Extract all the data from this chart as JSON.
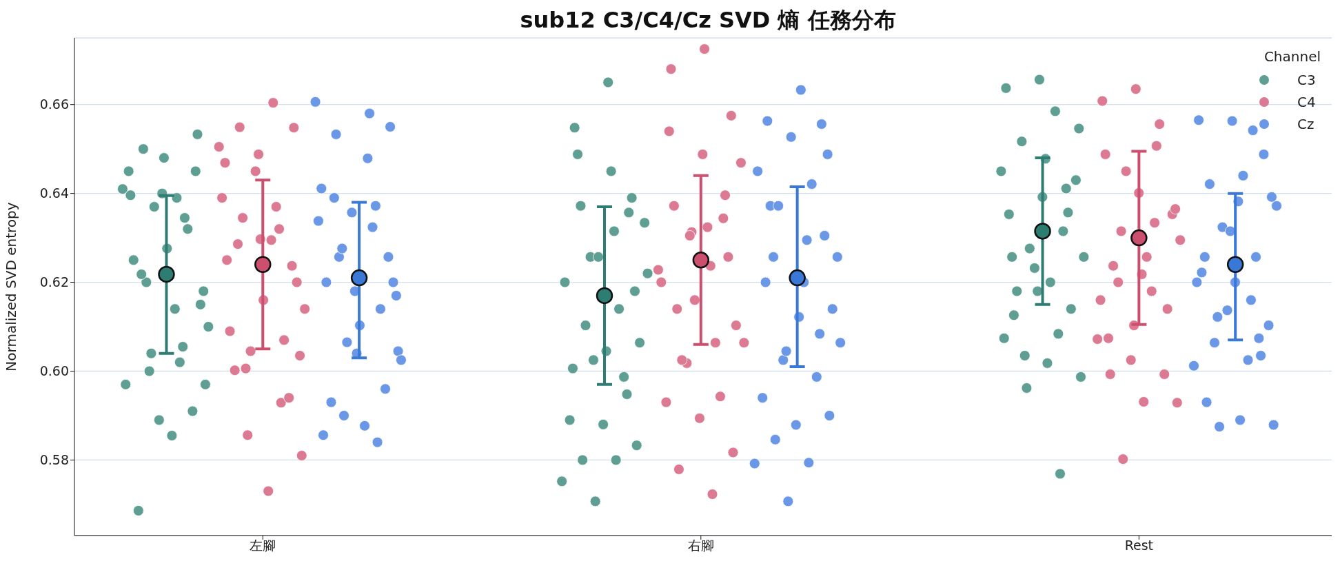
{
  "chart_data": {
    "type": "scatter",
    "title": "sub12 C3/C4/Cz SVD 熵 任務分布",
    "ylabel": "Normalized SVD entropy",
    "legend_title": "Channel",
    "legend": "top right",
    "grid": "y",
    "marker": "circle",
    "categories": [
      "左腳",
      "右腳",
      "Rest"
    ],
    "ylim": [
      0.563,
      0.675
    ],
    "yticks": [
      {
        "value": 0.58,
        "label": "0.58"
      },
      {
        "value": 0.6,
        "label": "0.60"
      },
      {
        "value": 0.62,
        "label": "0.62"
      },
      {
        "value": 0.64,
        "label": "0.64"
      },
      {
        "value": 0.66,
        "label": "0.66"
      }
    ],
    "series": [
      {
        "name": "C3",
        "color": "#5f9e93",
        "x": [
          "左腳",
          "左腳",
          "左腳",
          "左腳",
          "左腳",
          "左腳",
          "左腳",
          "左腳",
          "左腳",
          "左腳",
          "左腳",
          "左腳",
          "左腳",
          "左腳",
          "左腳",
          "左腳",
          "左腳",
          "左腳",
          "左腳",
          "左腳",
          "左腳",
          "左腳",
          "左腳",
          "左腳",
          "左腳",
          "左腳",
          "左腳",
          "左腳",
          "左腳",
          "左腳",
          "右腳",
          "右腳",
          "右腳",
          "右腳",
          "右腳",
          "右腳",
          "右腳",
          "右腳",
          "右腳",
          "右腳",
          "右腳",
          "右腳",
          "右腳",
          "右腳",
          "右腳",
          "右腳",
          "右腳",
          "右腳",
          "右腳",
          "右腳",
          "右腳",
          "右腳",
          "右腳",
          "右腳",
          "右腳",
          "右腳",
          "右腳",
          "右腳",
          "右腳",
          "Rest",
          "Rest",
          "Rest",
          "Rest",
          "Rest",
          "Rest",
          "Rest",
          "Rest",
          "Rest",
          "Rest",
          "Rest",
          "Rest",
          "Rest",
          "Rest",
          "Rest",
          "Rest",
          "Rest",
          "Rest",
          "Rest",
          "Rest",
          "Rest",
          "Rest",
          "Rest",
          "Rest",
          "Rest",
          "Rest",
          "Rest",
          "Rest",
          "Rest"
        ],
        "values": [
          0.641,
          0.639,
          0.65,
          0.6533,
          0.648,
          0.6396,
          0.6345,
          0.604,
          0.597,
          0.5855,
          0.5686,
          0.591,
          0.589,
          0.597,
          0.602,
          0.62,
          0.615,
          0.6276,
          0.625,
          0.632,
          0.637,
          0.61,
          0.614,
          0.6218,
          0.645,
          0.64,
          0.645,
          0.6055,
          0.6,
          0.618,
          0.665,
          0.6548,
          0.6357,
          0.5707,
          0.5752,
          0.58,
          0.58,
          0.5833,
          0.588,
          0.589,
          0.5987,
          0.6257,
          0.6334,
          0.645,
          0.6488,
          0.639,
          0.6257,
          0.62,
          0.614,
          0.6103,
          0.6064,
          0.6045,
          0.6006,
          0.5948,
          0.6025,
          0.622,
          0.6315,
          0.6372,
          0.618,
          0.6656,
          0.6637,
          0.5769,
          0.5962,
          0.5987,
          0.6018,
          0.6126,
          0.6357,
          0.6232,
          0.645,
          0.6585,
          0.6517,
          0.643,
          0.6392,
          0.6353,
          0.6315,
          0.6276,
          0.6257,
          0.62,
          0.618,
          0.614,
          0.618,
          0.6074,
          0.6084,
          0.6035,
          0.6546,
          0.6478,
          0.6257,
          0.6411
        ]
      },
      {
        "name": "C4",
        "color": "#dd7a93",
        "x": [
          "左腳",
          "左腳",
          "左腳",
          "左腳",
          "左腳",
          "左腳",
          "左腳",
          "左腳",
          "左腳",
          "左腳",
          "左腳",
          "左腳",
          "左腳",
          "左腳",
          "左腳",
          "左腳",
          "左腳",
          "左腳",
          "左腳",
          "左腳",
          "左腳",
          "左腳",
          "左腳",
          "左腳",
          "左腳",
          "左腳",
          "左腳",
          "左腳",
          "左腳",
          "左腳",
          "右腳",
          "右腳",
          "右腳",
          "右腳",
          "右腳",
          "右腳",
          "右腳",
          "右腳",
          "右腳",
          "右腳",
          "右腳",
          "右腳",
          "右腳",
          "右腳",
          "右腳",
          "右腳",
          "右腳",
          "右腳",
          "右腳",
          "右腳",
          "右腳",
          "右腳",
          "右腳",
          "右腳",
          "右腳",
          "右腳",
          "右腳",
          "右腳",
          "右腳",
          "Rest",
          "Rest",
          "Rest",
          "Rest",
          "Rest",
          "Rest",
          "Rest",
          "Rest",
          "Rest",
          "Rest",
          "Rest",
          "Rest",
          "Rest",
          "Rest",
          "Rest",
          "Rest",
          "Rest",
          "Rest",
          "Rest",
          "Rest",
          "Rest",
          "Rest",
          "Rest",
          "Rest",
          "Rest",
          "Rest",
          "Rest",
          "Rest"
        ],
        "values": [
          0.6505,
          0.6604,
          0.6549,
          0.6548,
          0.6297,
          0.625,
          0.5929,
          0.5856,
          0.581,
          0.573,
          0.6002,
          0.594,
          0.645,
          0.639,
          0.637,
          0.6345,
          0.62,
          0.616,
          0.609,
          0.607,
          0.6045,
          0.614,
          0.6295,
          0.6286,
          0.6237,
          0.6488,
          0.6469,
          0.632,
          0.6006,
          0.6035,
          0.6725,
          0.668,
          0.6396,
          0.6313,
          0.6228,
          0.5723,
          0.5779,
          0.5817,
          0.5894,
          0.593,
          0.5943,
          0.6018,
          0.6469,
          0.6324,
          0.6372,
          0.6257,
          0.616,
          0.62,
          0.6064,
          0.6025,
          0.6103,
          0.6488,
          0.654,
          0.6344,
          0.6305,
          0.6064,
          0.6237,
          0.614,
          0.6575,
          0.6635,
          0.6608,
          0.6507,
          0.5802,
          0.5929,
          0.5931,
          0.5993,
          0.5993,
          0.6025,
          0.6072,
          0.618,
          0.62,
          0.6353,
          0.6401,
          0.6488,
          0.6556,
          0.645,
          0.6295,
          0.6257,
          0.6237,
          0.614,
          0.6103,
          0.616,
          0.6334,
          0.6315,
          0.6365,
          0.6218,
          0.6074
        ]
      },
      {
        "name": "Cz",
        "color": "#6a97e6",
        "x": [
          "左腳",
          "左腳",
          "左腳",
          "左腳",
          "左腳",
          "左腳",
          "左腳",
          "左腳",
          "左腳",
          "左腳",
          "左腳",
          "左腳",
          "左腳",
          "左腳",
          "左腳",
          "左腳",
          "左腳",
          "左腳",
          "左腳",
          "左腳",
          "左腳",
          "左腳",
          "左腳",
          "左腳",
          "左腳",
          "左腳",
          "左腳",
          "左腳",
          "左腳",
          "左腳",
          "右腳",
          "右腳",
          "右腳",
          "右腳",
          "右腳",
          "右腳",
          "右腳",
          "右腳",
          "右腳",
          "右腳",
          "右腳",
          "右腳",
          "右腳",
          "右腳",
          "右腳",
          "右腳",
          "右腳",
          "右腳",
          "右腳",
          "右腳",
          "右腳",
          "右腳",
          "右腳",
          "右腳",
          "右腳",
          "右腳",
          "右腳",
          "右腳",
          "右腳",
          "Rest",
          "Rest",
          "Rest",
          "Rest",
          "Rest",
          "Rest",
          "Rest",
          "Rest",
          "Rest",
          "Rest",
          "Rest",
          "Rest",
          "Rest",
          "Rest",
          "Rest",
          "Rest",
          "Rest",
          "Rest",
          "Rest",
          "Rest",
          "Rest",
          "Rest",
          "Rest",
          "Rest",
          "Rest",
          "Rest",
          "Rest",
          "Rest",
          "Rest"
        ],
        "values": [
          0.6606,
          0.658,
          0.6533,
          0.655,
          0.604,
          0.5856,
          0.584,
          0.59,
          0.6045,
          0.5877,
          0.593,
          0.596,
          0.6357,
          0.6338,
          0.6324,
          0.6257,
          0.62,
          0.6103,
          0.62,
          0.614,
          0.6065,
          0.6025,
          0.6479,
          0.639,
          0.6257,
          0.618,
          0.6411,
          0.6372,
          0.6276,
          0.617,
          0.6633,
          0.6563,
          0.6556,
          0.5707,
          0.5792,
          0.5794,
          0.5846,
          0.59,
          0.5879,
          0.594,
          0.5987,
          0.6025,
          0.6257,
          0.62,
          0.6372,
          0.6305,
          0.6527,
          0.645,
          0.6421,
          0.6372,
          0.614,
          0.6122,
          0.62,
          0.6084,
          0.6045,
          0.6064,
          0.6295,
          0.6257,
          0.6488,
          0.6563,
          0.6565,
          0.6542,
          0.5875,
          0.5879,
          0.589,
          0.593,
          0.6035,
          0.6137,
          0.6012,
          0.6025,
          0.6064,
          0.6103,
          0.62,
          0.6222,
          0.6257,
          0.6324,
          0.6372,
          0.644,
          0.6421,
          0.6488,
          0.6315,
          0.62,
          0.616,
          0.6122,
          0.6392,
          0.6382,
          0.6257,
          0.6074
        ]
      },
      {
        "color": "#2e7d72",
        "x": [
          "左腳",
          "右腳",
          "Rest"
        ],
        "values": [
          0.6218,
          0.617,
          0.6315
        ],
        "errors": [
          [
            0.604,
            0.6395
          ],
          [
            0.597,
            0.637
          ],
          [
            0.615,
            0.648
          ]
        ]
      },
      {
        "color": "#cc4f6e",
        "x": [
          "左腳",
          "右腳",
          "Rest"
        ],
        "values": [
          0.624,
          0.625,
          0.63
        ],
        "errors": [
          [
            0.605,
            0.643
          ],
          [
            0.606,
            0.644
          ],
          [
            0.6105,
            0.6495
          ]
        ]
      },
      {
        "color": "#3a78d8",
        "x": [
          "左腳",
          "右腳",
          "Rest"
        ],
        "values": [
          0.621,
          0.621,
          0.624
        ],
        "errors": [
          [
            0.603,
            0.638
          ],
          [
            0.601,
            0.6415
          ],
          [
            0.607,
            0.64
          ]
        ]
      }
    ]
  }
}
